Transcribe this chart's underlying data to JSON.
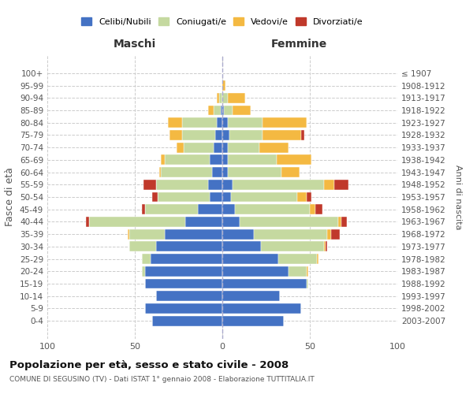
{
  "age_groups": [
    "0-4",
    "5-9",
    "10-14",
    "15-19",
    "20-24",
    "25-29",
    "30-34",
    "35-39",
    "40-44",
    "45-49",
    "50-54",
    "55-59",
    "60-64",
    "65-69",
    "70-74",
    "75-79",
    "80-84",
    "85-89",
    "90-94",
    "95-99",
    "100+"
  ],
  "birth_years": [
    "2003-2007",
    "1998-2002",
    "1993-1997",
    "1988-1992",
    "1983-1987",
    "1978-1982",
    "1973-1977",
    "1968-1972",
    "1963-1967",
    "1958-1962",
    "1953-1957",
    "1948-1952",
    "1943-1947",
    "1938-1942",
    "1933-1937",
    "1928-1932",
    "1923-1927",
    "1918-1922",
    "1913-1917",
    "1908-1912",
    "≤ 1907"
  ],
  "colors": {
    "celibe": "#4472c4",
    "coniugato": "#c5d9a0",
    "vedovo": "#f4b942",
    "divorziato": "#c0392b"
  },
  "maschi": {
    "celibe": [
      40,
      44,
      38,
      44,
      44,
      41,
      38,
      33,
      21,
      14,
      7,
      8,
      6,
      7,
      5,
      4,
      3,
      1,
      0,
      0,
      0
    ],
    "coniugato": [
      0,
      0,
      0,
      0,
      2,
      5,
      15,
      20,
      55,
      30,
      30,
      30,
      29,
      26,
      17,
      19,
      20,
      4,
      2,
      0,
      0
    ],
    "vedovo": [
      0,
      0,
      0,
      0,
      0,
      0,
      0,
      1,
      0,
      0,
      0,
      0,
      1,
      2,
      4,
      7,
      8,
      3,
      1,
      0,
      0
    ],
    "divorziato": [
      0,
      0,
      0,
      0,
      0,
      0,
      0,
      0,
      2,
      2,
      3,
      7,
      0,
      0,
      0,
      0,
      0,
      0,
      0,
      0,
      0
    ]
  },
  "femmine": {
    "nubile": [
      35,
      45,
      33,
      48,
      38,
      32,
      22,
      18,
      10,
      7,
      5,
      6,
      3,
      3,
      3,
      4,
      3,
      1,
      0,
      0,
      0
    ],
    "coniugata": [
      0,
      0,
      0,
      1,
      10,
      22,
      36,
      42,
      56,
      43,
      38,
      52,
      31,
      28,
      18,
      19,
      20,
      5,
      3,
      0,
      0
    ],
    "vedova": [
      0,
      0,
      0,
      0,
      1,
      1,
      1,
      2,
      2,
      3,
      5,
      6,
      10,
      20,
      17,
      22,
      25,
      10,
      10,
      2,
      0
    ],
    "divorziata": [
      0,
      0,
      0,
      0,
      0,
      0,
      1,
      5,
      3,
      4,
      3,
      8,
      0,
      0,
      0,
      2,
      0,
      0,
      0,
      0,
      0
    ]
  },
  "title": "Popolazione per età, sesso e stato civile - 2008",
  "subtitle": "COMUNE DI SEGUSINO (TV) - Dati ISTAT 1° gennaio 2008 - Elaborazione TUTTITALIA.IT",
  "xlabel_left": "Maschi",
  "xlabel_right": "Femmine",
  "ylabel_left": "Fasce di età",
  "ylabel_right": "Anni di nascita",
  "legend_labels": [
    "Celibi/Nubili",
    "Coniugati/e",
    "Vedovi/e",
    "Divorziati/e"
  ],
  "xlim": 100,
  "background_color": "#ffffff"
}
